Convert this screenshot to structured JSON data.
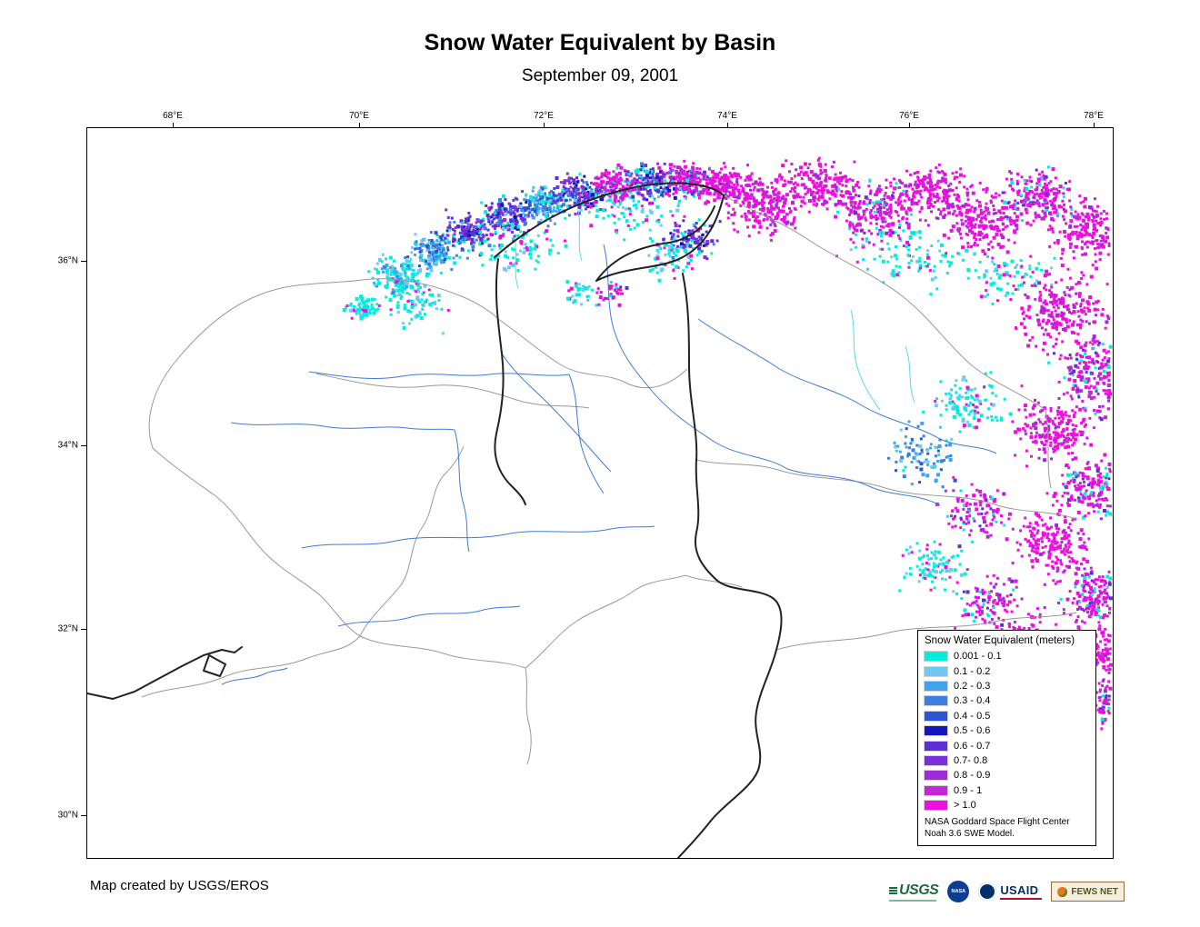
{
  "page": {
    "title": "Snow Water Equivalent by Basin",
    "subtitle": "September 09, 2001",
    "credit": "Map created by USGS/EROS"
  },
  "axes": {
    "lon": [
      "68°E",
      "70°E",
      "72°E",
      "74°E",
      "76°E",
      "78°E"
    ],
    "lat": [
      "36°N",
      "34°N",
      "32°N",
      "30°N"
    ]
  },
  "legend": {
    "title": "Snow Water Equivalent (meters)",
    "items": [
      {
        "label": "0.001 - 0.1",
        "color": "#00EEDC"
      },
      {
        "label": "0.1 - 0.2",
        "color": "#6FC9F3"
      },
      {
        "label": "0.2 - 0.3",
        "color": "#41A3EC"
      },
      {
        "label": "0.3 - 0.4",
        "color": "#3B7FE0"
      },
      {
        "label": "0.4 - 0.5",
        "color": "#2D55D2"
      },
      {
        "label": "0.5 - 0.6",
        "color": "#1515C3"
      },
      {
        "label": "0.6 - 0.7",
        "color": "#5B2FD1"
      },
      {
        "label": "0.7- 0.8",
        "color": "#7B2FD6"
      },
      {
        "label": "0.8 - 0.9",
        "color": "#9E2BD8"
      },
      {
        "label": "0.9 - 1",
        "color": "#C428D6"
      },
      {
        "label": "> 1.0",
        "color": "#EE0FDE"
      }
    ],
    "source_line1": "NASA Goddard Space Flight Center",
    "source_line2": "Noah 3.6 SWE Model."
  },
  "logos": {
    "usgs": "USGS",
    "nasa": "NASA",
    "usaid": "USAID",
    "fewsnet": "FEWS NET"
  },
  "map_colors": {
    "basin_boundary": "#222222",
    "subbasin_boundary": "#999999",
    "river": "#3E7BDB",
    "stream": "#59D8E8"
  }
}
